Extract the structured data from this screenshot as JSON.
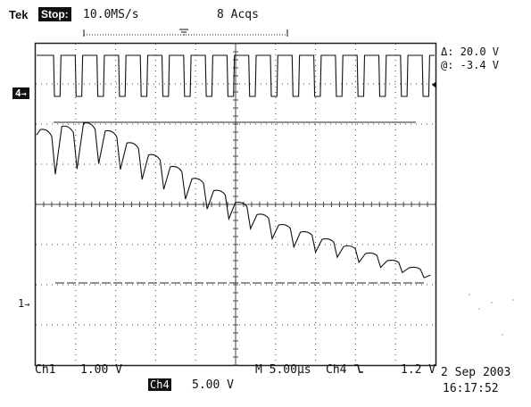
{
  "header": {
    "brand": "Tek",
    "state": "Stop:",
    "sample_rate": "10.0MS/s",
    "acquisitions": "8 Acqs"
  },
  "cursor_readout": {
    "delta": "Δ: 20.0 V",
    "at": "@: -3.4 V"
  },
  "channel_markers": {
    "ch4": "4",
    "ch1": "1"
  },
  "footer": {
    "ch1_label": "Ch1",
    "ch1_scale": "1.00 V",
    "ch4_label": "Ch4",
    "ch4_scale": "5.00 V",
    "timebase": "M 5.00µs",
    "trigger_source": "Ch4",
    "trigger_slope_icon": "falling-edge-icon",
    "trigger_level": "1.2 V",
    "date": "2 Sep 2003",
    "time": "16:17:52"
  },
  "colors": {
    "trace": "#111111",
    "grid": "#555555"
  }
}
